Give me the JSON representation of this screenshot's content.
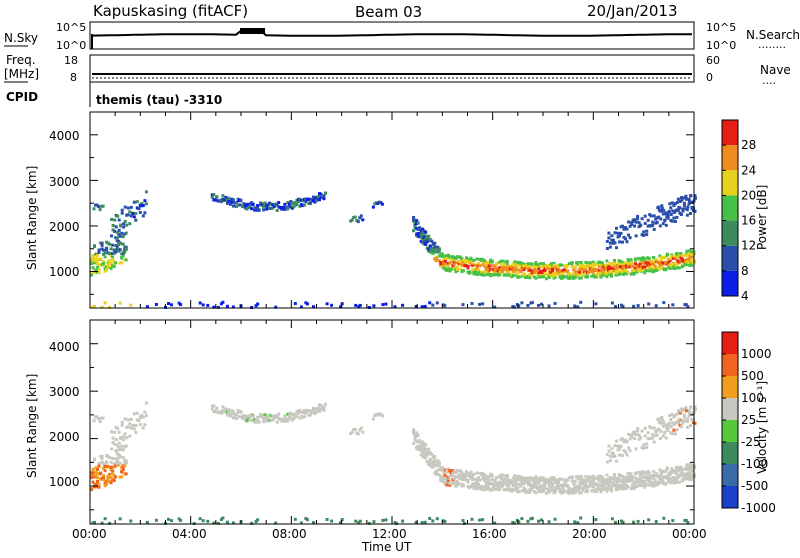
{
  "header": {
    "station": "Kapuskasing (fitACF)",
    "beam": "Beam 03",
    "date": "20/Jan/2013"
  },
  "noise_panel": {
    "left_label": "N.Sky",
    "left_ticks": [
      "10^5",
      "10^0"
    ],
    "right_ticks": [
      "10^5",
      "10^0"
    ],
    "right_label": "N.Search"
  },
  "freq_panel": {
    "left_label_1": "Freq.",
    "left_label_2": "[MHz]",
    "left_ticks": [
      "18",
      "8"
    ],
    "right_ticks": [
      "60",
      "0"
    ],
    "right_label": "Nave"
  },
  "cpid": {
    "label": "CPID",
    "value": "themis (tau) -3310"
  },
  "chart_data": [
    {
      "type": "heatmap",
      "name": "power",
      "ylabel": "Slant Range [km]",
      "yticks": [
        "4000",
        "3000",
        "2000",
        "1000"
      ],
      "ylim": [
        200,
        4500
      ],
      "xlim": [
        0,
        24
      ],
      "colorbar": {
        "label": "Power [dB]",
        "ticks": [
          "28",
          "24",
          "20",
          "16",
          "12",
          "8",
          "4"
        ],
        "colors": [
          "#0a1ee6",
          "#2a4faa",
          "#3d8a5f",
          "#46c046",
          "#e6d21e",
          "#f08c1e",
          "#e61e14"
        ]
      }
    },
    {
      "type": "heatmap",
      "name": "velocity",
      "ylabel": "Slant Range [km]",
      "yticks": [
        "4000",
        "3000",
        "2000",
        "1000"
      ],
      "ylim": [
        200,
        4500
      ],
      "xlim": [
        0,
        24
      ],
      "xticks": [
        "00:00",
        "04:00",
        "08:00",
        "12:00",
        "16:00",
        "20:00",
        "00:00"
      ],
      "xlabel": "Time UT",
      "colorbar": {
        "label": "Velocity [m s⁻¹]",
        "ticks": [
          "1000",
          "500",
          "100",
          "25",
          "-25",
          "-100",
          "-500",
          "-1000"
        ],
        "colors": [
          "#1a3fc8",
          "#3a6aa8",
          "#3d8a5f",
          "#55c83c",
          "#c8c8c0",
          "#f0a01e",
          "#f0641e",
          "#e61e14"
        ]
      }
    }
  ],
  "legend_marks": {
    "search": "........",
    "nave": "...."
  }
}
